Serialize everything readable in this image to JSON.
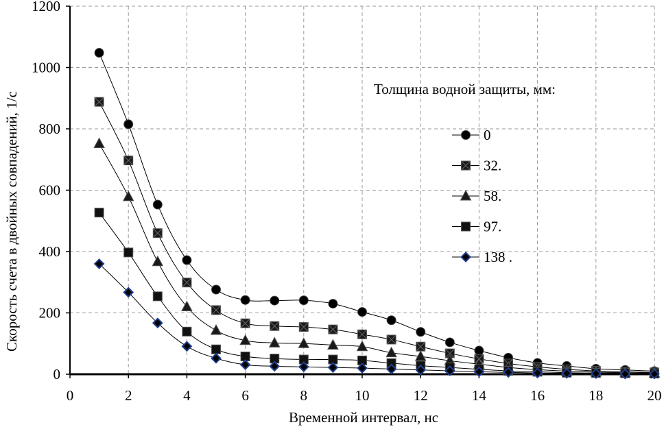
{
  "chart_data": {
    "type": "line",
    "title": "",
    "xlabel": "Временной интервал, нс",
    "ylabel": "Скорость счета в двойных  совпадений, 1/с",
    "xlim": [
      0,
      20
    ],
    "ylim": [
      0,
      1200
    ],
    "x_ticks": [
      "0",
      "2",
      "4",
      "6",
      "8",
      "10",
      "12",
      "14",
      "16",
      "18",
      "20"
    ],
    "y_ticks": [
      "0",
      "200",
      "400",
      "600",
      "800",
      "1000",
      "1200"
    ],
    "grid": true,
    "grid_style": "dashed",
    "legend_title": "Толщина водной защиты,  мм:",
    "legend_position": "right",
    "x": [
      1,
      2,
      3,
      4,
      5,
      6,
      7,
      8,
      9,
      10,
      11,
      12,
      13,
      14,
      15,
      16,
      17,
      18,
      19,
      20
    ],
    "series": [
      {
        "name": "0",
        "marker": "circle",
        "color": "#000000",
        "values": [
          1048,
          815,
          553,
          372,
          276,
          242,
          240,
          241,
          230,
          203,
          176,
          138,
          104,
          77,
          54,
          37,
          27,
          18,
          14,
          10
        ]
      },
      {
        "name": "32.",
        "marker": "square-x",
        "color": "#000000",
        "values": [
          888,
          697,
          460,
          299,
          209,
          166,
          157,
          154,
          146,
          130,
          113,
          90,
          68,
          50,
          35,
          24,
          16,
          11,
          8,
          6
        ]
      },
      {
        "name": "58.",
        "marker": "triangle",
        "color": "#000000",
        "values": [
          752,
          579,
          367,
          220,
          143,
          110,
          102,
          100,
          95,
          90,
          70,
          58,
          44,
          33,
          22,
          15,
          10,
          7,
          5,
          4
        ]
      },
      {
        "name": "97.",
        "marker": "square",
        "color": "#000000",
        "values": [
          527,
          397,
          254,
          139,
          81,
          58,
          51,
          48,
          48,
          45,
          36,
          28,
          22,
          16,
          11,
          8,
          5,
          4,
          3,
          2
        ]
      },
      {
        "name": "138 .",
        "marker": "diamond",
        "color": "#1f3f8f",
        "values": [
          360,
          267,
          167,
          91,
          52,
          31,
          26,
          24,
          22,
          20,
          17,
          14,
          11,
          8,
          6,
          4,
          3,
          2,
          1,
          1
        ]
      }
    ]
  }
}
